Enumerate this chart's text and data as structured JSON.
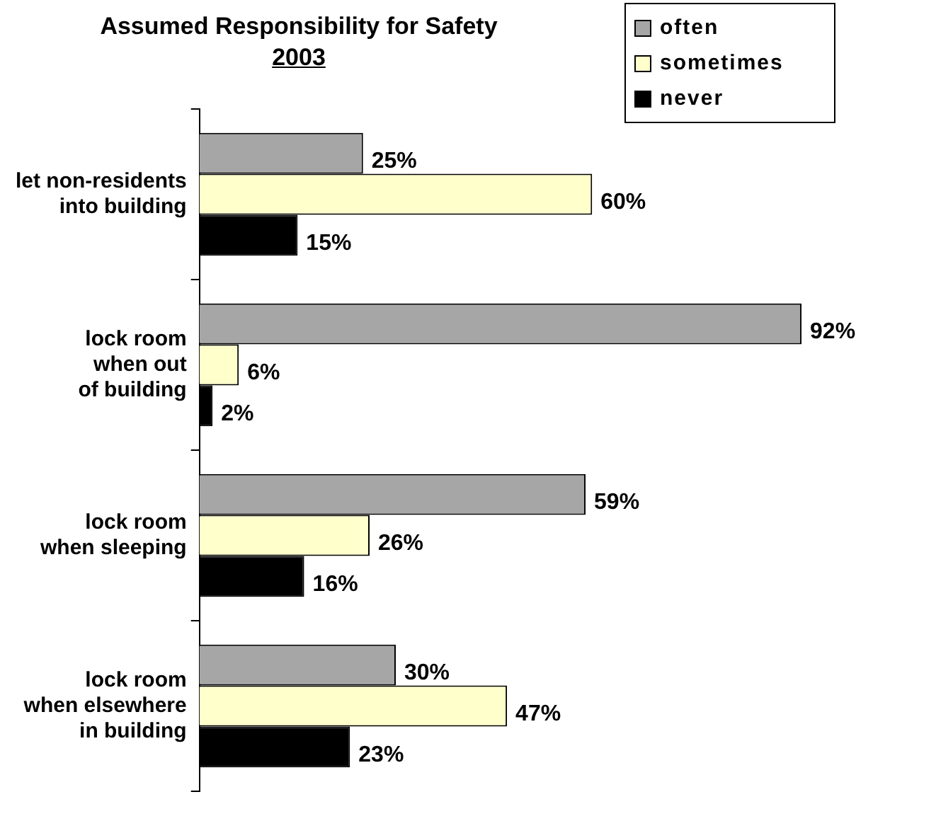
{
  "chart_data": {
    "type": "bar",
    "orientation": "horizontal",
    "title": "Assumed Responsibility for Safety",
    "subtitle": "2003",
    "categories": [
      "let non-residents\ninto building",
      "lock room\nwhen out\nof building",
      "lock room\nwhen sleeping",
      "lock room\nwhen elsewhere\nin building"
    ],
    "series": [
      {
        "name": "often",
        "color": "#a6a6a6",
        "values": [
          25,
          92,
          59,
          30
        ],
        "value_labels": [
          "25%",
          "92%",
          "59%",
          "30%"
        ]
      },
      {
        "name": "sometimes",
        "color": "#ffffcc",
        "values": [
          60,
          6,
          26,
          47
        ],
        "value_labels": [
          "60%",
          "6%",
          "26%",
          "47%"
        ]
      },
      {
        "name": "never",
        "color": "#000000",
        "values": [
          15,
          2,
          16,
          23
        ],
        "value_labels": [
          "15%",
          "2%",
          "16%",
          "23%"
        ]
      }
    ],
    "legend": "top right",
    "tick_labels": "y"
  }
}
